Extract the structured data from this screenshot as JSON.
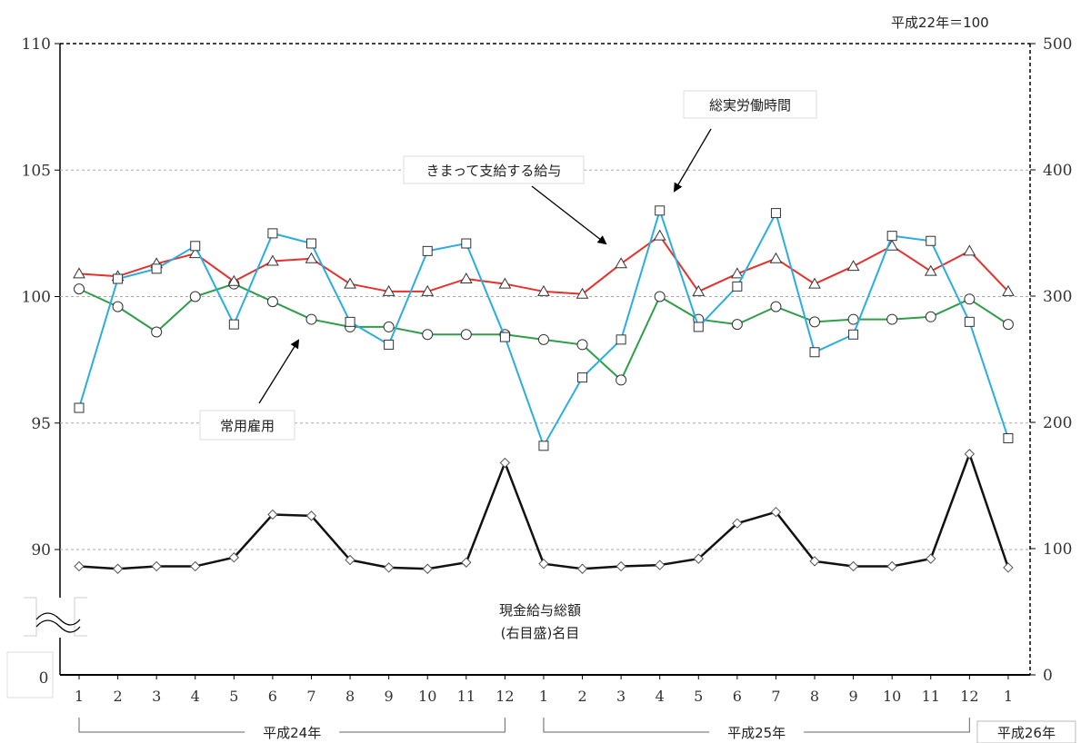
{
  "note": "平成22年＝100",
  "chart_data": {
    "type": "line",
    "categories": [
      "1",
      "2",
      "3",
      "4",
      "5",
      "6",
      "7",
      "8",
      "9",
      "10",
      "11",
      "12",
      "1",
      "2",
      "3",
      "4",
      "5",
      "6",
      "7",
      "8",
      "9",
      "10",
      "11",
      "12",
      "1"
    ],
    "year_groups": [
      {
        "label": "平成24年",
        "start": 0,
        "end": 11
      },
      {
        "label": "平成25年",
        "start": 12,
        "end": 23
      },
      {
        "label": "平成26年",
        "start": 24,
        "end": 24
      }
    ],
    "left_axis": {
      "ticks": [
        "110",
        "105",
        "100",
        "95",
        "90"
      ],
      "ylim": [
        90,
        110
      ],
      "break_label": "0"
    },
    "right_axis": {
      "ticks": [
        "500",
        "400",
        "300",
        "200",
        "100",
        "0"
      ],
      "ylim": [
        0,
        500
      ]
    },
    "series": [
      {
        "name": "きまって支給する給与",
        "axis": "left",
        "color": "#e8302a",
        "marker": "triangle",
        "values": [
          100.9,
          100.8,
          101.3,
          101.7,
          100.6,
          101.4,
          101.5,
          100.5,
          100.2,
          100.2,
          100.7,
          100.5,
          100.2,
          100.1,
          101.3,
          102.4,
          100.2,
          100.9,
          101.5,
          100.5,
          101.2,
          102.0,
          101.0,
          101.8,
          100.2
        ]
      },
      {
        "name": "総実労働時間",
        "axis": "left",
        "color": "#2aaee0",
        "marker": "square",
        "values": [
          95.6,
          100.7,
          101.1,
          102.0,
          98.9,
          102.5,
          102.1,
          99.0,
          98.1,
          101.8,
          102.1,
          98.4,
          94.1,
          96.8,
          98.3,
          103.4,
          98.8,
          100.4,
          103.3,
          97.8,
          98.5,
          102.4,
          102.2,
          99.0,
          94.4
        ]
      },
      {
        "name": "常用雇用",
        "axis": "left",
        "color": "#2e9e48",
        "marker": "circle",
        "values": [
          100.3,
          99.6,
          98.6,
          100.0,
          100.5,
          99.8,
          99.1,
          98.8,
          98.8,
          98.5,
          98.5,
          98.5,
          98.3,
          98.1,
          96.7,
          100.0,
          99.1,
          98.9,
          99.6,
          99.0,
          99.1,
          99.1,
          99.2,
          99.9,
          98.9
        ]
      },
      {
        "name": "現金給与総額（右目盛）名目",
        "axis": "right",
        "color": "#111111",
        "marker": "diamond",
        "values": [
          86,
          84,
          86,
          86,
          93,
          127,
          126,
          91,
          85,
          84,
          89,
          168,
          88,
          84,
          86,
          87,
          92,
          120,
          129,
          90,
          86,
          86,
          92,
          175,
          85
        ]
      }
    ],
    "annotations": [
      {
        "text": "総実労働時間"
      },
      {
        "text": "きまって支給する給与"
      },
      {
        "text": "常用雇用"
      },
      {
        "text_lines": [
          "現金給与総額",
          "(右目盛)名目"
        ]
      }
    ],
    "grid": true
  }
}
